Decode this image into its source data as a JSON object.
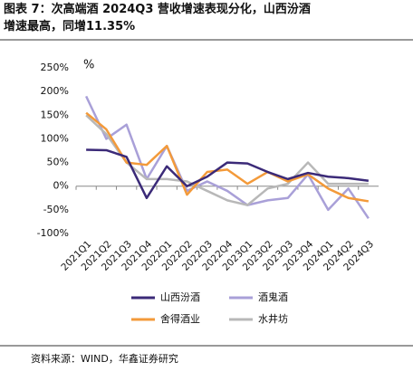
{
  "chart_data": {
    "type": "line",
    "title": "图表 7：次高端酒 2024Q3 营收增速表现分化，山西汾酒增速最高，同增11.35%",
    "y_unit": "%",
    "source": "资料来源：WIND，华鑫证券研究",
    "categories": [
      "2021Q1",
      "2021Q2",
      "2021Q3",
      "2021Q4",
      "2022Q1",
      "2022Q2",
      "2022Q3",
      "2022Q4",
      "2023Q1",
      "2023Q2",
      "2023Q3",
      "2023Q4",
      "2024Q1",
      "2024Q2",
      "2024Q3"
    ],
    "series": [
      {
        "name": "山西汾酒",
        "color": "#3b2a78",
        "values": [
          77,
          76,
          62,
          -25,
          42,
          0,
          20,
          50,
          48,
          30,
          15,
          28,
          20,
          17,
          11.35
        ]
      },
      {
        "name": "酒鬼酒",
        "color": "#a9a0d8",
        "values": [
          190,
          100,
          130,
          15,
          85,
          -10,
          10,
          -10,
          -40,
          -30,
          -25,
          25,
          -50,
          -5,
          -68
        ]
      },
      {
        "name": "舍得酒业",
        "color": "#f39a3a",
        "values": [
          155,
          120,
          50,
          45,
          85,
          -18,
          30,
          35,
          5,
          30,
          10,
          25,
          -5,
          -25,
          -32
        ]
      },
      {
        "name": "水井坊",
        "color": "#b8b8b8",
        "values": [
          150,
          110,
          50,
          15,
          15,
          10,
          -10,
          -30,
          -40,
          -5,
          5,
          50,
          5,
          5,
          5
        ]
      }
    ],
    "ylim": [
      -100,
      250
    ],
    "yticks": [
      {
        "value": -100,
        "label": "-100%"
      },
      {
        "value": -50,
        "label": "-50%"
      },
      {
        "value": 0,
        "label": "0%"
      },
      {
        "value": 50,
        "label": "50%"
      },
      {
        "value": 100,
        "label": "100%"
      },
      {
        "value": 150,
        "label": "150%"
      },
      {
        "value": 200,
        "label": "200%"
      },
      {
        "value": 250,
        "label": "250%"
      }
    ]
  }
}
